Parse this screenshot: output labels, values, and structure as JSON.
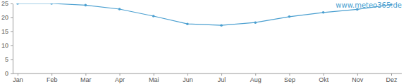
{
  "chart_data": {
    "type": "line",
    "categories": [
      "Jan",
      "Feb",
      "Mar",
      "Apr",
      "Mai",
      "Jun",
      "Jul",
      "Aug",
      "Sep",
      "Okt",
      "Nov",
      "Dez"
    ],
    "values": [
      25,
      25,
      24.4,
      23,
      20.5,
      17.7,
      17.2,
      18.2,
      20.3,
      21.8,
      22.9,
      24.6
    ],
    "color": "#4a9fd0",
    "marker": "circle",
    "ylim": [
      0,
      25
    ],
    "yticks": [
      0,
      5,
      10,
      15,
      20,
      25
    ],
    "grid": false,
    "annotations": [
      "www.meteo365.de"
    ]
  }
}
